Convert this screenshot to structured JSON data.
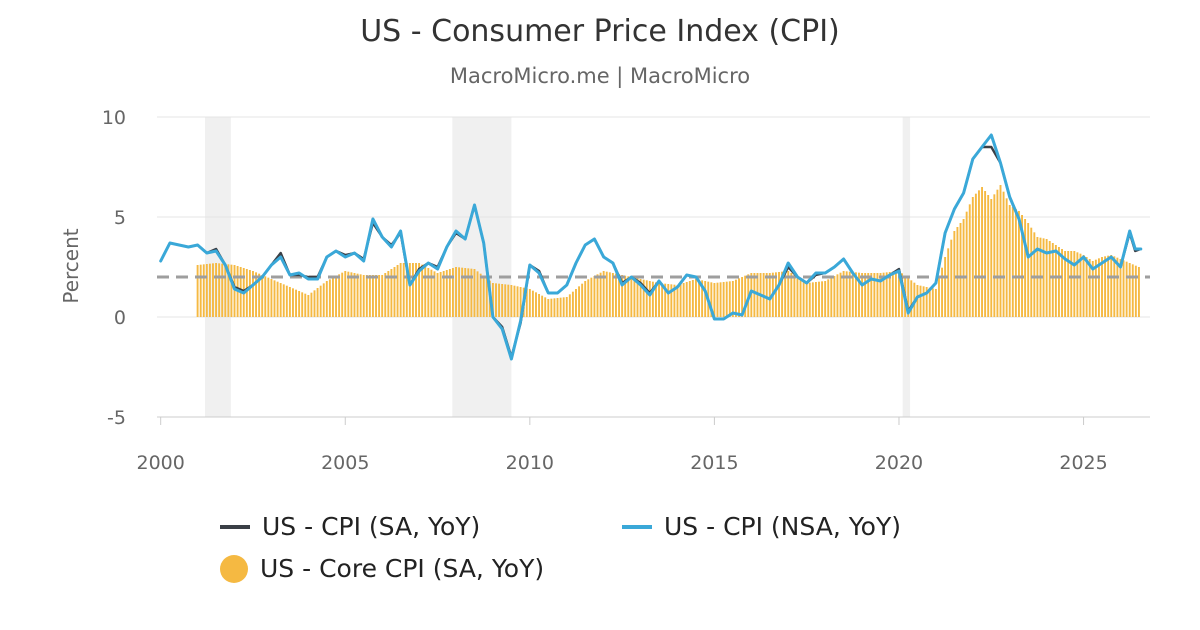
{
  "title": "US - Consumer Price Index (CPI)",
  "subtitle": "MacroMicro.me | MacroMicro",
  "chart_data": {
    "type": "line",
    "title": "US - Consumer Price Index (CPI)",
    "subtitle": "MacroMicro.me | MacroMicro",
    "ylabel": "Percent",
    "xlabel": "",
    "ylim": [
      -5,
      10
    ],
    "xlim": [
      1999.9,
      2026.8
    ],
    "yticks": [
      "10",
      "5",
      "0",
      "-5"
    ],
    "xticks": [
      "2000",
      "2005",
      "2010",
      "2015",
      "2020",
      "2025"
    ],
    "grid": true,
    "legend_position": "bottom",
    "reference_line": {
      "y": 2,
      "style": "dashed",
      "color": "#9e9e9e"
    },
    "recession_shading": [
      [
        2001.2,
        2001.9
      ],
      [
        2007.9,
        2009.5
      ],
      [
        2020.1,
        2020.3
      ]
    ],
    "series": [
      {
        "name": "US - CPI (SA, YoY)",
        "type": "line",
        "color": "#3a3f46",
        "points": [
          [
            2000.0,
            2.8
          ],
          [
            2000.25,
            3.7
          ],
          [
            2000.5,
            3.6
          ],
          [
            2000.75,
            3.5
          ],
          [
            2001.0,
            3.6
          ],
          [
            2001.25,
            3.2
          ],
          [
            2001.5,
            3.4
          ],
          [
            2001.75,
            2.6
          ],
          [
            2002.0,
            1.5
          ],
          [
            2002.25,
            1.3
          ],
          [
            2002.5,
            1.6
          ],
          [
            2002.75,
            2.0
          ],
          [
            2003.0,
            2.6
          ],
          [
            2003.25,
            3.2
          ],
          [
            2003.5,
            2.1
          ],
          [
            2003.75,
            2.1
          ],
          [
            2004.0,
            2.0
          ],
          [
            2004.25,
            2.0
          ],
          [
            2004.5,
            3.0
          ],
          [
            2004.75,
            3.3
          ],
          [
            2005.0,
            3.1
          ],
          [
            2005.25,
            3.2
          ],
          [
            2005.5,
            2.9
          ],
          [
            2005.75,
            4.7
          ],
          [
            2006.0,
            4.0
          ],
          [
            2006.25,
            3.6
          ],
          [
            2006.5,
            4.2
          ],
          [
            2006.75,
            1.6
          ],
          [
            2007.0,
            2.4
          ],
          [
            2007.25,
            2.7
          ],
          [
            2007.5,
            2.5
          ],
          [
            2007.75,
            3.5
          ],
          [
            2008.0,
            4.2
          ],
          [
            2008.25,
            3.9
          ],
          [
            2008.5,
            5.6
          ],
          [
            2008.75,
            3.7
          ],
          [
            2009.0,
            0.0
          ],
          [
            2009.25,
            -0.5
          ],
          [
            2009.5,
            -2.0
          ],
          [
            2009.75,
            -0.3
          ],
          [
            2010.0,
            2.6
          ],
          [
            2010.25,
            2.3
          ],
          [
            2010.5,
            1.2
          ],
          [
            2010.75,
            1.2
          ],
          [
            2011.0,
            1.6
          ],
          [
            2011.25,
            2.7
          ],
          [
            2011.5,
            3.6
          ],
          [
            2011.75,
            3.9
          ],
          [
            2012.0,
            3.0
          ],
          [
            2012.25,
            2.7
          ],
          [
            2012.5,
            1.7
          ],
          [
            2012.75,
            2.0
          ],
          [
            2013.0,
            1.7
          ],
          [
            2013.25,
            1.2
          ],
          [
            2013.5,
            1.8
          ],
          [
            2013.75,
            1.2
          ],
          [
            2014.0,
            1.5
          ],
          [
            2014.25,
            2.1
          ],
          [
            2014.5,
            2.0
          ],
          [
            2014.75,
            1.3
          ],
          [
            2015.0,
            -0.1
          ],
          [
            2015.25,
            -0.1
          ],
          [
            2015.5,
            0.2
          ],
          [
            2015.75,
            0.1
          ],
          [
            2016.0,
            1.3
          ],
          [
            2016.25,
            1.1
          ],
          [
            2016.5,
            0.9
          ],
          [
            2016.75,
            1.6
          ],
          [
            2017.0,
            2.5
          ],
          [
            2017.25,
            2.0
          ],
          [
            2017.5,
            1.7
          ],
          [
            2017.75,
            2.1
          ],
          [
            2018.0,
            2.2
          ],
          [
            2018.25,
            2.5
          ],
          [
            2018.5,
            2.9
          ],
          [
            2018.75,
            2.2
          ],
          [
            2019.0,
            1.6
          ],
          [
            2019.25,
            1.9
          ],
          [
            2019.5,
            1.8
          ],
          [
            2019.75,
            2.1
          ],
          [
            2020.0,
            2.4
          ],
          [
            2020.25,
            0.3
          ],
          [
            2020.5,
            1.0
          ],
          [
            2020.75,
            1.2
          ],
          [
            2021.0,
            1.7
          ],
          [
            2021.25,
            4.2
          ],
          [
            2021.5,
            5.4
          ],
          [
            2021.75,
            6.2
          ],
          [
            2022.0,
            7.9
          ],
          [
            2022.25,
            8.5
          ],
          [
            2022.5,
            8.5
          ],
          [
            2022.75,
            7.7
          ],
          [
            2023.0,
            6.0
          ],
          [
            2023.25,
            4.9
          ],
          [
            2023.5,
            3.0
          ],
          [
            2023.75,
            3.4
          ],
          [
            2024.0,
            3.2
          ],
          [
            2024.25,
            3.3
          ],
          [
            2024.5,
            2.9
          ],
          [
            2024.75,
            2.6
          ],
          [
            2025.0,
            3.0
          ],
          [
            2025.25,
            2.4
          ],
          [
            2025.5,
            2.7
          ],
          [
            2025.75,
            3.0
          ],
          [
            2026.0,
            2.5
          ],
          [
            2026.25,
            4.2
          ],
          [
            2026.4,
            3.3
          ],
          [
            2026.55,
            3.4
          ]
        ]
      },
      {
        "name": "US - CPI (NSA, YoY)",
        "type": "line",
        "color": "#3aa8d8",
        "points": [
          [
            2000.0,
            2.8
          ],
          [
            2000.25,
            3.7
          ],
          [
            2000.5,
            3.6
          ],
          [
            2000.75,
            3.5
          ],
          [
            2001.0,
            3.6
          ],
          [
            2001.25,
            3.2
          ],
          [
            2001.5,
            3.3
          ],
          [
            2001.75,
            2.6
          ],
          [
            2002.0,
            1.4
          ],
          [
            2002.25,
            1.2
          ],
          [
            2002.5,
            1.6
          ],
          [
            2002.75,
            2.0
          ],
          [
            2003.0,
            2.6
          ],
          [
            2003.25,
            3.0
          ],
          [
            2003.5,
            2.1
          ],
          [
            2003.75,
            2.2
          ],
          [
            2004.0,
            1.9
          ],
          [
            2004.25,
            1.9
          ],
          [
            2004.5,
            3.0
          ],
          [
            2004.75,
            3.3
          ],
          [
            2005.0,
            3.0
          ],
          [
            2005.25,
            3.2
          ],
          [
            2005.5,
            2.8
          ],
          [
            2005.75,
            4.9
          ],
          [
            2006.0,
            4.0
          ],
          [
            2006.25,
            3.5
          ],
          [
            2006.5,
            4.3
          ],
          [
            2006.75,
            1.6
          ],
          [
            2007.0,
            2.3
          ],
          [
            2007.25,
            2.7
          ],
          [
            2007.5,
            2.4
          ],
          [
            2007.75,
            3.5
          ],
          [
            2008.0,
            4.3
          ],
          [
            2008.25,
            3.9
          ],
          [
            2008.5,
            5.6
          ],
          [
            2008.75,
            3.7
          ],
          [
            2009.0,
            0.0
          ],
          [
            2009.25,
            -0.6
          ],
          [
            2009.5,
            -2.1
          ],
          [
            2009.75,
            -0.2
          ],
          [
            2010.0,
            2.6
          ],
          [
            2010.25,
            2.2
          ],
          [
            2010.5,
            1.2
          ],
          [
            2010.75,
            1.2
          ],
          [
            2011.0,
            1.6
          ],
          [
            2011.25,
            2.7
          ],
          [
            2011.5,
            3.6
          ],
          [
            2011.75,
            3.9
          ],
          [
            2012.0,
            3.0
          ],
          [
            2012.25,
            2.7
          ],
          [
            2012.5,
            1.6
          ],
          [
            2012.75,
            2.0
          ],
          [
            2013.0,
            1.6
          ],
          [
            2013.25,
            1.1
          ],
          [
            2013.5,
            1.8
          ],
          [
            2013.75,
            1.2
          ],
          [
            2014.0,
            1.5
          ],
          [
            2014.25,
            2.1
          ],
          [
            2014.5,
            2.0
          ],
          [
            2014.75,
            1.3
          ],
          [
            2015.0,
            -0.1
          ],
          [
            2015.25,
            -0.1
          ],
          [
            2015.5,
            0.2
          ],
          [
            2015.75,
            0.1
          ],
          [
            2016.0,
            1.3
          ],
          [
            2016.25,
            1.1
          ],
          [
            2016.5,
            0.9
          ],
          [
            2016.75,
            1.6
          ],
          [
            2017.0,
            2.7
          ],
          [
            2017.25,
            2.0
          ],
          [
            2017.5,
            1.7
          ],
          [
            2017.75,
            2.2
          ],
          [
            2018.0,
            2.2
          ],
          [
            2018.25,
            2.5
          ],
          [
            2018.5,
            2.9
          ],
          [
            2018.75,
            2.2
          ],
          [
            2019.0,
            1.6
          ],
          [
            2019.25,
            1.9
          ],
          [
            2019.5,
            1.8
          ],
          [
            2019.75,
            2.1
          ],
          [
            2020.0,
            2.3
          ],
          [
            2020.25,
            0.2
          ],
          [
            2020.5,
            1.0
          ],
          [
            2020.75,
            1.2
          ],
          [
            2021.0,
            1.7
          ],
          [
            2021.25,
            4.2
          ],
          [
            2021.5,
            5.4
          ],
          [
            2021.75,
            6.2
          ],
          [
            2022.0,
            7.9
          ],
          [
            2022.25,
            8.5
          ],
          [
            2022.5,
            9.1
          ],
          [
            2022.75,
            7.7
          ],
          [
            2023.0,
            6.0
          ],
          [
            2023.25,
            4.9
          ],
          [
            2023.5,
            3.0
          ],
          [
            2023.75,
            3.4
          ],
          [
            2024.0,
            3.2
          ],
          [
            2024.25,
            3.3
          ],
          [
            2024.5,
            2.9
          ],
          [
            2024.75,
            2.6
          ],
          [
            2025.0,
            3.0
          ],
          [
            2025.25,
            2.4
          ],
          [
            2025.5,
            2.7
          ],
          [
            2025.75,
            3.0
          ],
          [
            2026.0,
            2.5
          ],
          [
            2026.25,
            4.3
          ],
          [
            2026.4,
            3.4
          ],
          [
            2026.55,
            3.4
          ]
        ]
      },
      {
        "name": "US - Core CPI (SA, YoY)",
        "type": "bar",
        "color": "#f5b942",
        "points": [
          [
            2001.0,
            2.6
          ],
          [
            2001.5,
            2.7
          ],
          [
            2002.0,
            2.6
          ],
          [
            2002.5,
            2.3
          ],
          [
            2003.0,
            1.9
          ],
          [
            2003.5,
            1.5
          ],
          [
            2004.0,
            1.1
          ],
          [
            2004.5,
            1.8
          ],
          [
            2005.0,
            2.3
          ],
          [
            2005.5,
            2.1
          ],
          [
            2006.0,
            2.1
          ],
          [
            2006.5,
            2.7
          ],
          [
            2007.0,
            2.7
          ],
          [
            2007.5,
            2.2
          ],
          [
            2008.0,
            2.5
          ],
          [
            2008.5,
            2.4
          ],
          [
            2009.0,
            1.7
          ],
          [
            2009.5,
            1.6
          ],
          [
            2010.0,
            1.4
          ],
          [
            2010.5,
            0.9
          ],
          [
            2011.0,
            1.0
          ],
          [
            2011.5,
            1.8
          ],
          [
            2012.0,
            2.3
          ],
          [
            2012.5,
            2.1
          ],
          [
            2013.0,
            1.9
          ],
          [
            2013.5,
            1.7
          ],
          [
            2014.0,
            1.6
          ],
          [
            2014.5,
            1.9
          ],
          [
            2015.0,
            1.7
          ],
          [
            2015.5,
            1.8
          ],
          [
            2016.0,
            2.2
          ],
          [
            2016.5,
            2.2
          ],
          [
            2017.0,
            2.3
          ],
          [
            2017.5,
            1.7
          ],
          [
            2018.0,
            1.8
          ],
          [
            2018.5,
            2.3
          ],
          [
            2019.0,
            2.2
          ],
          [
            2019.5,
            2.2
          ],
          [
            2020.0,
            2.3
          ],
          [
            2020.5,
            1.6
          ],
          [
            2021.0,
            1.4
          ],
          [
            2021.25,
            3.0
          ],
          [
            2021.5,
            4.3
          ],
          [
            2021.75,
            4.9
          ],
          [
            2022.0,
            6.0
          ],
          [
            2022.25,
            6.5
          ],
          [
            2022.5,
            5.9
          ],
          [
            2022.75,
            6.6
          ],
          [
            2023.0,
            5.6
          ],
          [
            2023.25,
            5.3
          ],
          [
            2023.5,
            4.7
          ],
          [
            2023.75,
            4.0
          ],
          [
            2024.0,
            3.9
          ],
          [
            2024.25,
            3.6
          ],
          [
            2024.5,
            3.3
          ],
          [
            2024.75,
            3.3
          ],
          [
            2025.0,
            3.1
          ],
          [
            2025.25,
            2.8
          ],
          [
            2025.5,
            3.0
          ],
          [
            2025.75,
            3.1
          ],
          [
            2026.0,
            2.9
          ],
          [
            2026.25,
            2.7
          ],
          [
            2026.5,
            2.5
          ]
        ]
      }
    ]
  },
  "legend": {
    "items": [
      {
        "label": "US - CPI (SA, YoY)",
        "color": "#3a3f46",
        "shape": "line"
      },
      {
        "label": "US - CPI (NSA, YoY)",
        "color": "#3aa8d8",
        "shape": "line"
      },
      {
        "label": "US - Core CPI (SA, YoY)",
        "color": "#f5b942",
        "shape": "dot"
      }
    ]
  }
}
